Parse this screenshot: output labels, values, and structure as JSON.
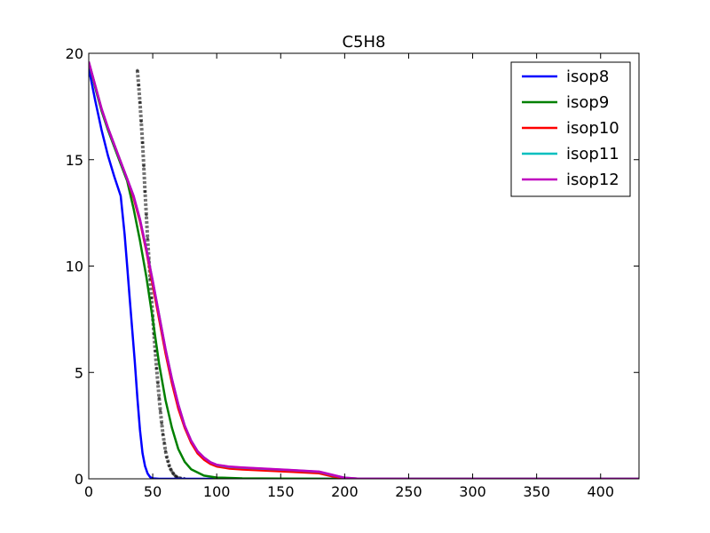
{
  "chart_data": {
    "type": "line",
    "title": "C5H8",
    "xlabel": "",
    "ylabel": "",
    "xlim": [
      0,
      430
    ],
    "ylim": [
      0,
      20
    ],
    "x_ticks": [
      0,
      50,
      100,
      150,
      200,
      250,
      300,
      350,
      400
    ],
    "y_ticks": [
      0,
      5,
      10,
      15,
      20
    ],
    "x_tick_labels": [
      "0",
      "50",
      "100",
      "150",
      "200",
      "250",
      "300",
      "350",
      "400"
    ],
    "y_tick_labels": [
      "0",
      "5",
      "10",
      "15",
      "20"
    ],
    "grid": false,
    "legend_position": "top-right",
    "series": [
      {
        "name": "isop8",
        "color": "#0000ff",
        "x": [
          0,
          5,
          10,
          15,
          20,
          25,
          28,
          30,
          32,
          34,
          36,
          38,
          40,
          42,
          44,
          46,
          48,
          50,
          55,
          60,
          80,
          100,
          200,
          300,
          430
        ],
        "y": [
          19.3,
          17.8,
          16.4,
          15.2,
          14.2,
          13.3,
          11.5,
          10.0,
          8.5,
          7.0,
          5.5,
          3.8,
          2.3,
          1.2,
          0.6,
          0.25,
          0.08,
          0.02,
          0,
          0,
          0,
          0,
          0,
          0,
          0
        ]
      },
      {
        "name": "isop9",
        "color": "#008000",
        "x": [
          0,
          5,
          10,
          15,
          20,
          25,
          30,
          35,
          40,
          45,
          50,
          55,
          60,
          65,
          70,
          75,
          80,
          90,
          100,
          120,
          150,
          200,
          300,
          430
        ],
        "y": [
          19.6,
          18.4,
          17.3,
          16.4,
          15.6,
          14.8,
          14.0,
          12.7,
          11.2,
          9.5,
          7.5,
          5.4,
          3.7,
          2.4,
          1.4,
          0.8,
          0.45,
          0.15,
          0.06,
          0.02,
          0.01,
          0,
          0,
          0
        ]
      },
      {
        "name": "isop10",
        "color": "#ff0000",
        "x": [
          0,
          5,
          10,
          15,
          20,
          25,
          30,
          35,
          40,
          45,
          50,
          55,
          60,
          65,
          70,
          75,
          80,
          85,
          90,
          95,
          100,
          110,
          120,
          140,
          160,
          180,
          190,
          200,
          210,
          250,
          300,
          430
        ],
        "y": [
          19.6,
          18.5,
          17.4,
          16.5,
          15.7,
          14.9,
          14.1,
          13.2,
          12.1,
          10.7,
          9.1,
          7.5,
          5.9,
          4.5,
          3.3,
          2.4,
          1.7,
          1.2,
          0.9,
          0.7,
          0.58,
          0.48,
          0.44,
          0.38,
          0.32,
          0.26,
          0.12,
          0.03,
          0.01,
          0,
          0,
          0
        ]
      },
      {
        "name": "isop11",
        "color": "#00bfbf",
        "x": [
          0,
          5,
          10,
          15,
          20,
          25,
          30,
          35,
          40,
          45,
          50,
          55,
          60,
          65,
          70,
          75,
          80,
          85,
          90,
          95,
          100,
          110,
          120,
          140,
          160,
          180,
          190,
          200,
          210,
          250,
          300,
          430
        ],
        "y": [
          19.6,
          18.5,
          17.4,
          16.5,
          15.7,
          14.9,
          14.1,
          13.3,
          12.2,
          10.8,
          9.3,
          7.7,
          6.1,
          4.7,
          3.5,
          2.5,
          1.8,
          1.3,
          1.0,
          0.78,
          0.65,
          0.56,
          0.52,
          0.46,
          0.4,
          0.33,
          0.18,
          0.05,
          0.01,
          0,
          0,
          0
        ]
      },
      {
        "name": "isop12",
        "color": "#bf00bf",
        "x": [
          0,
          5,
          10,
          15,
          20,
          25,
          30,
          35,
          40,
          45,
          50,
          55,
          60,
          65,
          70,
          75,
          80,
          85,
          90,
          95,
          100,
          110,
          120,
          140,
          160,
          180,
          190,
          200,
          210,
          250,
          300,
          430
        ],
        "y": [
          19.6,
          18.5,
          17.4,
          16.5,
          15.7,
          14.9,
          14.1,
          13.3,
          12.2,
          10.8,
          9.3,
          7.7,
          6.1,
          4.7,
          3.5,
          2.5,
          1.8,
          1.3,
          1.0,
          0.78,
          0.66,
          0.57,
          0.53,
          0.47,
          0.41,
          0.34,
          0.19,
          0.05,
          0.01,
          0,
          0,
          0
        ]
      }
    ],
    "background_observations": {
      "color": "#000000",
      "x": [
        38,
        39,
        40,
        41,
        42,
        43,
        44,
        45,
        46,
        47,
        48,
        49,
        50,
        51,
        52,
        53,
        54,
        55,
        56,
        57,
        58,
        59,
        60,
        61,
        62,
        63,
        64,
        65,
        66,
        67,
        68,
        69,
        70,
        72,
        75
      ],
      "y": [
        19.2,
        18.5,
        17.7,
        16.8,
        15.8,
        14.7,
        13.5,
        12.4,
        11.3,
        10.3,
        9.4,
        8.5,
        7.6,
        6.8,
        6.0,
        5.2,
        4.5,
        3.8,
        3.2,
        2.6,
        2.1,
        1.7,
        1.3,
        1.0,
        0.8,
        0.6,
        0.45,
        0.35,
        0.25,
        0.18,
        0.12,
        0.08,
        0.05,
        0.02,
        0
      ]
    }
  }
}
